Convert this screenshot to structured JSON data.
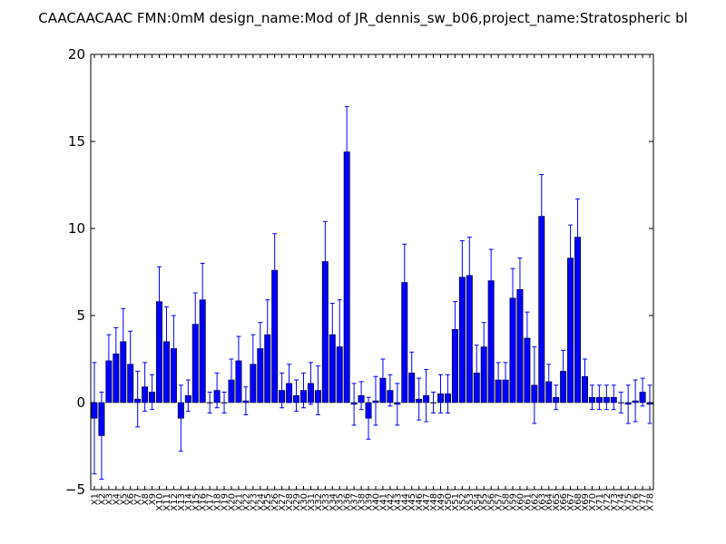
{
  "chart_data": {
    "type": "bar",
    "title": "CAACAACAAC  FMN:0mM  design_name:Mod of JR_dennis_sw_b06,project_name:Stratospheric bl",
    "xlabel": "",
    "ylabel": "",
    "ylim": [
      -5,
      20
    ],
    "yticks": [
      -5,
      0,
      5,
      10,
      15,
      20
    ],
    "grid": false,
    "bar_color": "#0000ff",
    "error_color": "#0000ff",
    "categories": [
      "X1",
      "X2",
      "X3",
      "X4",
      "X5",
      "X6",
      "X7",
      "X8",
      "X9",
      "X10",
      "X11",
      "X12",
      "X13",
      "X14",
      "X15",
      "X16",
      "X17",
      "X18",
      "X19",
      "X20",
      "X21",
      "X22",
      "X23",
      "X24",
      "X25",
      "X26",
      "X27",
      "X28",
      "X29",
      "X30",
      "X31",
      "X32",
      "X33",
      "X34",
      "X35",
      "X36",
      "X37",
      "X38",
      "X39",
      "X40",
      "X41",
      "X42",
      "X43",
      "X44",
      "X45",
      "X46",
      "X47",
      "X48",
      "X49",
      "X50",
      "X51",
      "X52",
      "X53",
      "X54",
      "X55",
      "X56",
      "X57",
      "X58",
      "X59",
      "X60",
      "X61",
      "X62",
      "X63",
      "X64",
      "X65",
      "X66",
      "X67",
      "X68",
      "X69",
      "X70",
      "X71",
      "X72",
      "X73",
      "X74",
      "X75",
      "X76",
      "X77",
      "X78"
    ],
    "values": [
      -0.9,
      -1.9,
      2.4,
      2.8,
      3.5,
      2.2,
      0.2,
      0.9,
      0.6,
      5.8,
      3.5,
      3.1,
      -0.9,
      0.4,
      4.5,
      5.9,
      0.0,
      0.7,
      0.0,
      1.3,
      2.4,
      0.1,
      2.2,
      3.1,
      3.9,
      7.6,
      0.7,
      1.1,
      0.4,
      0.7,
      1.1,
      0.7,
      8.1,
      3.9,
      3.2,
      14.4,
      -0.1,
      0.4,
      -0.9,
      0.1,
      1.4,
      0.7,
      -0.1,
      6.9,
      1.7,
      0.2,
      0.4,
      0.0,
      0.5,
      0.5,
      4.2,
      7.2,
      7.3,
      1.7,
      3.2,
      7.0,
      1.3,
      1.3,
      6.0,
      6.5,
      3.7,
      1.0,
      10.7,
      1.2,
      0.3,
      1.8,
      8.3,
      9.5,
      1.5,
      0.3,
      0.3,
      0.3,
      0.3,
      0.0,
      -0.1,
      0.1,
      0.6,
      -0.1
    ],
    "errors": [
      3.2,
      2.5,
      1.5,
      1.5,
      1.9,
      1.9,
      1.6,
      1.4,
      1.0,
      2.0,
      2.0,
      1.9,
      1.9,
      0.9,
      1.8,
      2.1,
      0.6,
      1.0,
      0.6,
      1.2,
      1.4,
      0.8,
      1.7,
      1.5,
      2.0,
      2.1,
      1.0,
      1.1,
      0.9,
      1.0,
      1.2,
      1.4,
      2.3,
      1.8,
      2.7,
      2.6,
      1.2,
      0.8,
      1.2,
      1.4,
      1.1,
      0.9,
      1.2,
      2.2,
      1.2,
      1.2,
      1.5,
      0.6,
      1.1,
      1.1,
      1.6,
      2.1,
      2.2,
      1.6,
      1.4,
      1.8,
      1.0,
      1.0,
      1.7,
      1.8,
      1.5,
      2.2,
      2.4,
      1.0,
      0.7,
      1.2,
      1.9,
      2.2,
      1.0,
      0.7,
      0.7,
      0.7,
      0.7,
      0.6,
      1.1,
      1.2,
      0.8,
      1.1
    ]
  }
}
